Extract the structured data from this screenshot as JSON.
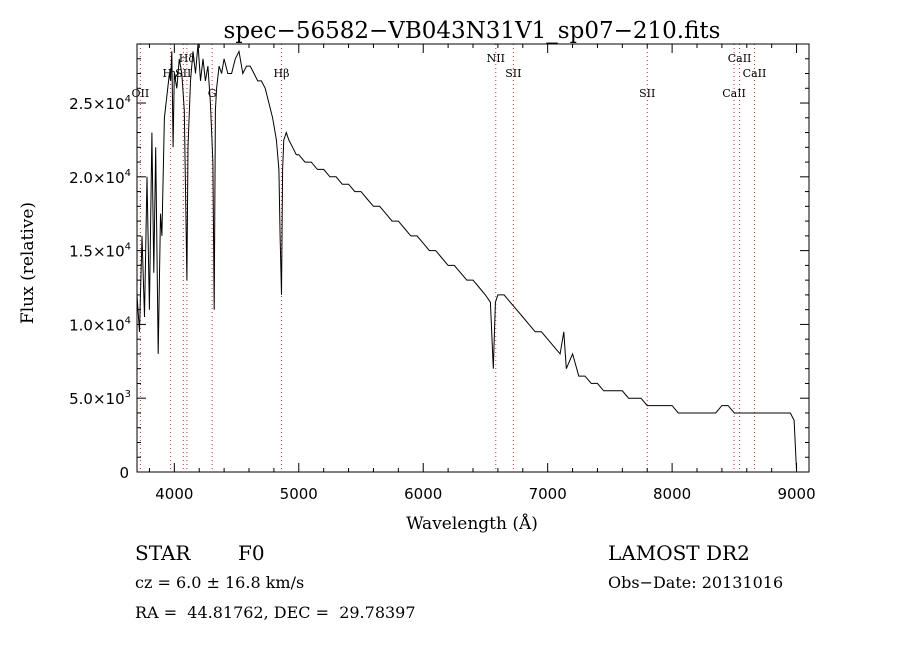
{
  "chart_data": {
    "type": "line",
    "title": "spec−56582−VB043N31V1_sp07−210.fits",
    "xlabel": "Wavelength (Å)",
    "ylabel": "Flux (relative)",
    "xlim": [
      3700,
      9100
    ],
    "ylim": [
      0,
      29000
    ],
    "x_ticks": [
      {
        "value": 4000,
        "label": "4000"
      },
      {
        "value": 5000,
        "label": "5000"
      },
      {
        "value": 6000,
        "label": "6000"
      },
      {
        "value": 7000,
        "label": "7000"
      },
      {
        "value": 8000,
        "label": "8000"
      },
      {
        "value": 9000,
        "label": "9000"
      }
    ],
    "y_ticks": [
      {
        "value": 0,
        "label": "0"
      },
      {
        "value": 5000,
        "label": "5.0×10",
        "exp": "3"
      },
      {
        "value": 10000,
        "label": "1.0×10",
        "exp": "4"
      },
      {
        "value": 15000,
        "label": "1.5×10",
        "exp": "4"
      },
      {
        "value": 20000,
        "label": "2.0×10",
        "exp": "4"
      },
      {
        "value": 25000,
        "label": "2.5×10",
        "exp": "4"
      }
    ],
    "grid": false,
    "series": [
      {
        "x": [
          3700,
          3720,
          3740,
          3760,
          3780,
          3800,
          3820,
          3835,
          3850,
          3870,
          3889,
          3900,
          3920,
          3940,
          3960,
          3970,
          3980,
          3990,
          4000,
          4020,
          4040,
          4060,
          4080,
          4101,
          4110,
          4130,
          4150,
          4170,
          4190,
          4210,
          4230,
          4250,
          4270,
          4290,
          4310,
          4320,
          4330,
          4340,
          4360,
          4380,
          4400,
          4430,
          4460,
          4490,
          4520,
          4550,
          4580,
          4610,
          4640,
          4670,
          4700,
          4730,
          4760,
          4790,
          4820,
          4840,
          4850,
          4861,
          4870,
          4880,
          4900,
          4920,
          4950,
          4980,
          5000,
          5050,
          5100,
          5150,
          5200,
          5250,
          5300,
          5350,
          5400,
          5450,
          5500,
          5550,
          5600,
          5650,
          5700,
          5750,
          5800,
          5850,
          5900,
          5950,
          6000,
          6050,
          6100,
          6150,
          6200,
          6250,
          6300,
          6350,
          6400,
          6450,
          6500,
          6540,
          6563,
          6580,
          6600,
          6650,
          6700,
          6750,
          6800,
          6850,
          6900,
          6950,
          7000,
          7050,
          7100,
          7130,
          7150,
          7200,
          7250,
          7300,
          7350,
          7400,
          7450,
          7500,
          7550,
          7600,
          7650,
          7700,
          7750,
          7800,
          7850,
          7900,
          7950,
          8000,
          8050,
          8100,
          8150,
          8200,
          8250,
          8300,
          8350,
          8400,
          8450,
          8500,
          8550,
          8600,
          8650,
          8700,
          8750,
          8800,
          8850,
          8900,
          8950,
          8980,
          9000
        ],
        "y": [
          12000,
          9500,
          16000,
          10500,
          20000,
          11000,
          23000,
          13500,
          22000,
          8000,
          17500,
          16000,
          24000,
          25500,
          27000,
          26500,
          28500,
          22000,
          27000,
          26000,
          28000,
          27000,
          24500,
          13000,
          22000,
          26500,
          28500,
          27000,
          29000,
          26500,
          28000,
          26500,
          27500,
          25000,
          21000,
          11000,
          24500,
          26000,
          27500,
          27000,
          28000,
          27000,
          27000,
          28000,
          28500,
          27000,
          27500,
          27500,
          27000,
          26500,
          26500,
          26000,
          25000,
          24000,
          22500,
          20500,
          16000,
          12000,
          20500,
          22500,
          23000,
          22500,
          22000,
          21500,
          21500,
          21000,
          21000,
          20500,
          20500,
          20000,
          20000,
          19500,
          19500,
          19000,
          19000,
          18500,
          18000,
          18000,
          17500,
          17000,
          17000,
          16500,
          16000,
          16000,
          15500,
          15000,
          15000,
          14500,
          14000,
          14000,
          13500,
          13000,
          13000,
          12500,
          12000,
          11500,
          7000,
          11500,
          12000,
          12000,
          11500,
          11000,
          10500,
          10000,
          9500,
          9500,
          9000,
          8500,
          8000,
          9500,
          7000,
          8000,
          6500,
          6500,
          6000,
          6000,
          5500,
          5500,
          5500,
          5500,
          5000,
          5000,
          5000,
          4500,
          4500,
          4500,
          4500,
          4500,
          4000,
          4000,
          4000,
          4000,
          4000,
          4000,
          4000,
          4500,
          4500,
          4000,
          4000,
          4000,
          4000,
          4000,
          4000,
          4000,
          4000,
          4000,
          4000,
          3500,
          0
        ]
      }
    ],
    "lines": [
      {
        "name": "OII",
        "x": 3727,
        "label_row": 2
      },
      {
        "name": "Hγ",
        "x": 3970,
        "label_row": 1
      },
      {
        "name": "Hδ",
        "x": 4101,
        "label_row": 0
      },
      {
        "name": "SII",
        "x": 4072,
        "label_row": 1
      },
      {
        "name": "G",
        "x": 4304,
        "label_row": 2
      },
      {
        "name": "Hβ",
        "x": 4861,
        "label_row": 1
      },
      {
        "name": "NII",
        "x": 6583,
        "label_row": 0
      },
      {
        "name": "SII",
        "x": 6724,
        "label_row": 1
      },
      {
        "name": "SII",
        "x": 7800,
        "label_row": 2
      },
      {
        "name": "CaII",
        "x": 8498,
        "label_row": 2
      },
      {
        "name": "CaII",
        "x": 8542,
        "label_row": 0
      },
      {
        "name": "CaII",
        "x": 8662,
        "label_row": 1
      }
    ]
  },
  "footer": {
    "object_class": "STAR",
    "subclass": "F0",
    "survey": "LAMOST DR2",
    "cz": "cz = 6.0 ± 16.8 km/s",
    "obs_date": "Obs−Date: 20131016",
    "radec": "RA =  44.81762, DEC =  29.78397"
  }
}
